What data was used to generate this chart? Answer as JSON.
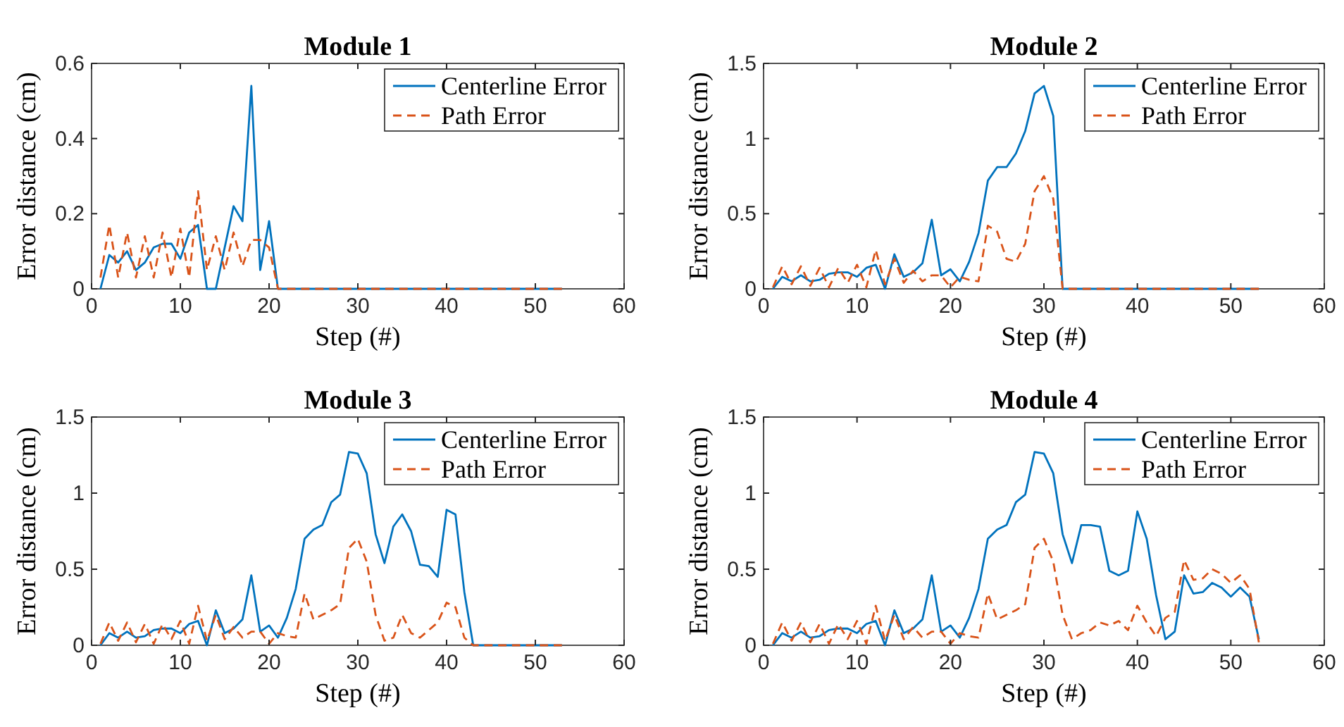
{
  "chart_data": [
    {
      "type": "line",
      "title": "Module 1",
      "xlabel": "Step (#)",
      "ylabel": "Error distance (cm)",
      "x": [
        1,
        2,
        3,
        4,
        5,
        6,
        7,
        8,
        9,
        10,
        11,
        12,
        13,
        14,
        15,
        16,
        17,
        18,
        19,
        20,
        21,
        22,
        23,
        24,
        25,
        26,
        27,
        28,
        29,
        30,
        31,
        32,
        33,
        34,
        35,
        36,
        37,
        38,
        39,
        40,
        41,
        42,
        43,
        44,
        45,
        46,
        47,
        48,
        49,
        50,
        51,
        52,
        53
      ],
      "xlim": [
        0,
        60
      ],
      "xticks": [
        0,
        10,
        20,
        30,
        40,
        50,
        60
      ],
      "ylim": [
        0,
        0.6
      ],
      "yticks": [
        0,
        0.2,
        0.4,
        0.6
      ],
      "grid": false,
      "legend": "top right",
      "series": [
        {
          "name": "Centerline Error",
          "color": "#0072bd",
          "line_style": "solid",
          "values": [
            0,
            0.09,
            0.07,
            0.1,
            0.05,
            0.07,
            0.11,
            0.12,
            0.12,
            0.08,
            0.15,
            0.17,
            0,
            0,
            0.11,
            0.22,
            0.18,
            0.54,
            0.05,
            0.18,
            0,
            0,
            0,
            0,
            0,
            0,
            0,
            0,
            0,
            0,
            0,
            0,
            0,
            0,
            0,
            0,
            0,
            0,
            0,
            0,
            0,
            0,
            0,
            0,
            0,
            0,
            0,
            0,
            0,
            0,
            0,
            0,
            0
          ]
        },
        {
          "name": "Path Error",
          "color": "#d95319",
          "line_style": "dashed",
          "values": [
            0.03,
            0.17,
            0.03,
            0.15,
            0.03,
            0.14,
            0.03,
            0.15,
            0.03,
            0.16,
            0.03,
            0.26,
            0.05,
            0.14,
            0.05,
            0.15,
            0.06,
            0.13,
            0.13,
            0.11,
            0,
            0,
            0,
            0,
            0,
            0,
            0,
            0,
            0,
            0,
            0,
            0,
            0,
            0,
            0,
            0,
            0,
            0,
            0,
            0,
            0,
            0,
            0,
            0,
            0,
            0,
            0,
            0,
            0,
            0,
            0,
            0,
            0
          ]
        }
      ]
    },
    {
      "type": "line",
      "title": "Module 2",
      "xlabel": "Step (#)",
      "ylabel": "Error distance (cm)",
      "x": [
        1,
        2,
        3,
        4,
        5,
        6,
        7,
        8,
        9,
        10,
        11,
        12,
        13,
        14,
        15,
        16,
        17,
        18,
        19,
        20,
        21,
        22,
        23,
        24,
        25,
        26,
        27,
        28,
        29,
        30,
        31,
        32,
        33,
        34,
        35,
        36,
        37,
        38,
        39,
        40,
        41,
        42,
        43,
        44,
        45,
        46,
        47,
        48,
        49,
        50,
        51,
        52,
        53
      ],
      "xlim": [
        0,
        60
      ],
      "xticks": [
        0,
        10,
        20,
        30,
        40,
        50,
        60
      ],
      "ylim": [
        0,
        1.5
      ],
      "yticks": [
        0,
        0.5,
        1,
        1.5
      ],
      "grid": false,
      "legend": "top right",
      "series": [
        {
          "name": "Centerline Error",
          "color": "#0072bd",
          "line_style": "solid",
          "values": [
            0,
            0.08,
            0.05,
            0.09,
            0.05,
            0.06,
            0.1,
            0.11,
            0.11,
            0.08,
            0.14,
            0.16,
            0,
            0.23,
            0.08,
            0.11,
            0.17,
            0.46,
            0.09,
            0.13,
            0.05,
            0.18,
            0.37,
            0.72,
            0.81,
            0.81,
            0.9,
            1.05,
            1.3,
            1.35,
            1.15,
            0,
            0,
            0,
            0,
            0,
            0,
            0,
            0,
            0,
            0,
            0,
            0,
            0,
            0,
            0,
            0,
            0,
            0,
            0,
            0,
            0,
            0
          ]
        },
        {
          "name": "Path Error",
          "color": "#d95319",
          "line_style": "dashed",
          "values": [
            0.01,
            0.15,
            0.03,
            0.15,
            0.02,
            0.14,
            0.01,
            0.14,
            0.04,
            0.16,
            0.01,
            0.26,
            0.03,
            0.2,
            0.04,
            0.12,
            0.05,
            0.09,
            0.09,
            0.01,
            0.08,
            0.06,
            0.05,
            0.42,
            0.38,
            0.2,
            0.18,
            0.3,
            0.65,
            0.75,
            0.6,
            0,
            0,
            0,
            0,
            0,
            0,
            0,
            0,
            0,
            0,
            0,
            0,
            0,
            0,
            0,
            0,
            0,
            0,
            0,
            0,
            0,
            0
          ]
        }
      ]
    },
    {
      "type": "line",
      "title": "Module 3",
      "xlabel": "Step (#)",
      "ylabel": "Error distance (cm)",
      "x": [
        1,
        2,
        3,
        4,
        5,
        6,
        7,
        8,
        9,
        10,
        11,
        12,
        13,
        14,
        15,
        16,
        17,
        18,
        19,
        20,
        21,
        22,
        23,
        24,
        25,
        26,
        27,
        28,
        29,
        30,
        31,
        32,
        33,
        34,
        35,
        36,
        37,
        38,
        39,
        40,
        41,
        42,
        43,
        44,
        45,
        46,
        47,
        48,
        49,
        50,
        51,
        52,
        53
      ],
      "xlim": [
        0,
        60
      ],
      "xticks": [
        0,
        10,
        20,
        30,
        40,
        50,
        60
      ],
      "ylim": [
        0,
        1.5
      ],
      "yticks": [
        0,
        0.5,
        1,
        1.5
      ],
      "grid": false,
      "legend": "top right",
      "series": [
        {
          "name": "Centerline Error",
          "color": "#0072bd",
          "line_style": "solid",
          "values": [
            0,
            0.08,
            0.05,
            0.09,
            0.05,
            0.06,
            0.1,
            0.11,
            0.11,
            0.08,
            0.14,
            0.16,
            0,
            0.23,
            0.08,
            0.11,
            0.17,
            0.46,
            0.09,
            0.13,
            0.05,
            0.18,
            0.37,
            0.7,
            0.76,
            0.79,
            0.94,
            0.99,
            1.27,
            1.26,
            1.13,
            0.73,
            0.54,
            0.78,
            0.86,
            0.75,
            0.53,
            0.52,
            0.45,
            0.89,
            0.86,
            0.35,
            0,
            0,
            0,
            0,
            0,
            0,
            0,
            0,
            0,
            0,
            0
          ]
        },
        {
          "name": "Path Error",
          "color": "#d95319",
          "line_style": "dashed",
          "values": [
            0.01,
            0.15,
            0.03,
            0.15,
            0.02,
            0.14,
            0.01,
            0.14,
            0.04,
            0.16,
            0.01,
            0.26,
            0.03,
            0.2,
            0.04,
            0.12,
            0.05,
            0.09,
            0.09,
            0.01,
            0.08,
            0.06,
            0.05,
            0.34,
            0.17,
            0.2,
            0.23,
            0.27,
            0.64,
            0.7,
            0.55,
            0.2,
            0.03,
            0.05,
            0.2,
            0.08,
            0.05,
            0.1,
            0.15,
            0.28,
            0.25,
            0.05,
            0,
            0,
            0,
            0,
            0,
            0,
            0,
            0,
            0,
            0,
            0
          ]
        }
      ]
    },
    {
      "type": "line",
      "title": "Module 4",
      "xlabel": "Step (#)",
      "ylabel": "Error distance (cm)",
      "x": [
        1,
        2,
        3,
        4,
        5,
        6,
        7,
        8,
        9,
        10,
        11,
        12,
        13,
        14,
        15,
        16,
        17,
        18,
        19,
        20,
        21,
        22,
        23,
        24,
        25,
        26,
        27,
        28,
        29,
        30,
        31,
        32,
        33,
        34,
        35,
        36,
        37,
        38,
        39,
        40,
        41,
        42,
        43,
        44,
        45,
        46,
        47,
        48,
        49,
        50,
        51,
        52,
        53
      ],
      "xlim": [
        0,
        60
      ],
      "xticks": [
        0,
        10,
        20,
        30,
        40,
        50,
        60
      ],
      "ylim": [
        0,
        1.5
      ],
      "yticks": [
        0,
        0.5,
        1,
        1.5
      ],
      "grid": false,
      "legend": "top right",
      "series": [
        {
          "name": "Centerline Error",
          "color": "#0072bd",
          "line_style": "solid",
          "values": [
            0,
            0.08,
            0.05,
            0.09,
            0.05,
            0.06,
            0.1,
            0.11,
            0.11,
            0.08,
            0.14,
            0.16,
            0,
            0.23,
            0.08,
            0.11,
            0.17,
            0.46,
            0.09,
            0.13,
            0.05,
            0.18,
            0.37,
            0.7,
            0.76,
            0.79,
            0.94,
            0.99,
            1.27,
            1.26,
            1.13,
            0.73,
            0.54,
            0.79,
            0.79,
            0.78,
            0.49,
            0.46,
            0.49,
            0.88,
            0.7,
            0.33,
            0.04,
            0.09,
            0.46,
            0.34,
            0.35,
            0.41,
            0.38,
            0.32,
            0.38,
            0.32,
            0.04
          ]
        },
        {
          "name": "Path Error",
          "color": "#d95319",
          "line_style": "dashed",
          "values": [
            0.01,
            0.15,
            0.03,
            0.15,
            0.02,
            0.14,
            0.01,
            0.14,
            0.04,
            0.16,
            0.01,
            0.26,
            0.03,
            0.2,
            0.04,
            0.12,
            0.05,
            0.09,
            0.09,
            0.01,
            0.08,
            0.06,
            0.05,
            0.34,
            0.17,
            0.2,
            0.23,
            0.27,
            0.64,
            0.7,
            0.55,
            0.2,
            0.04,
            0.08,
            0.1,
            0.15,
            0.13,
            0.16,
            0.1,
            0.26,
            0.15,
            0.06,
            0.18,
            0.22,
            0.56,
            0.43,
            0.44,
            0.5,
            0.47,
            0.41,
            0.46,
            0.37,
            0.02
          ]
        }
      ]
    }
  ]
}
